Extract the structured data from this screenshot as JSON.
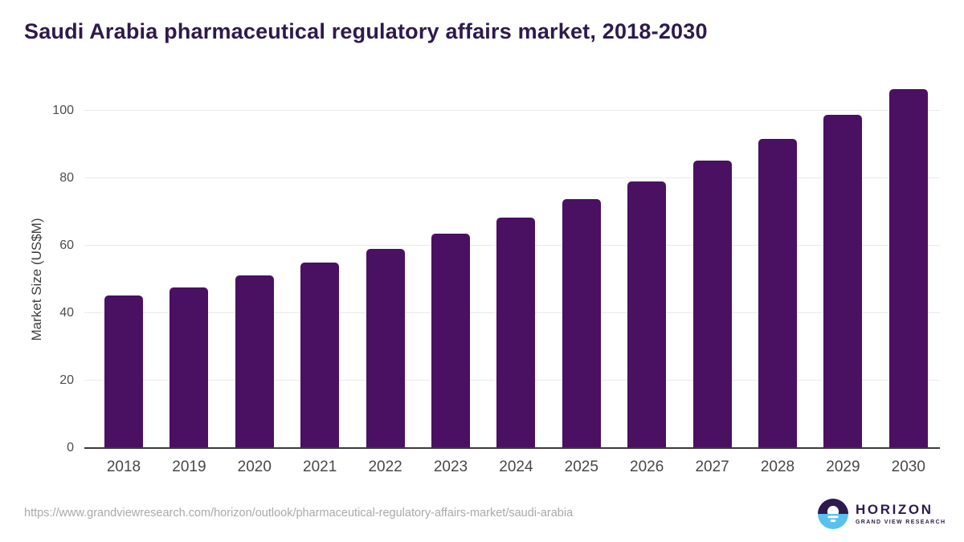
{
  "title": "Saudi Arabia pharmaceutical regulatory affairs market, 2018-2030",
  "footer": {
    "source_url": "https://www.grandviewresearch.com/horizon/outlook/pharmaceutical-regulatory-affairs-market/saudi-arabia",
    "logo": {
      "name": "HORIZON",
      "subname": "GRAND VIEW RESEARCH"
    }
  },
  "colors": {
    "bar": "#4a1061",
    "title": "#2e1a4d",
    "axis_text": "#4d4d4d",
    "gridline": "#e9e9e9",
    "axis_line": "#3a3a3a",
    "url_text": "#a9a9a9",
    "logo_dark": "#2d1b4e",
    "logo_blue": "#5ac1ee"
  },
  "chart_data": {
    "type": "bar",
    "title": "Saudi Arabia pharmaceutical regulatory affairs market, 2018-2030",
    "categories": [
      "2018",
      "2019",
      "2020",
      "2021",
      "2022",
      "2023",
      "2024",
      "2025",
      "2026",
      "2027",
      "2028",
      "2029",
      "2030"
    ],
    "values": [
      45.1,
      47.4,
      50.9,
      54.7,
      58.9,
      63.4,
      68.2,
      73.5,
      78.9,
      85.0,
      91.4,
      98.6,
      106.3
    ],
    "xlabel": "",
    "ylabel": "Market Size (US$M)",
    "ylim": [
      0,
      110
    ],
    "yticks": [
      0,
      20,
      40,
      60,
      80,
      100
    ],
    "grid": "horizontal",
    "legend": "none",
    "bar_color": "#4a1061"
  }
}
